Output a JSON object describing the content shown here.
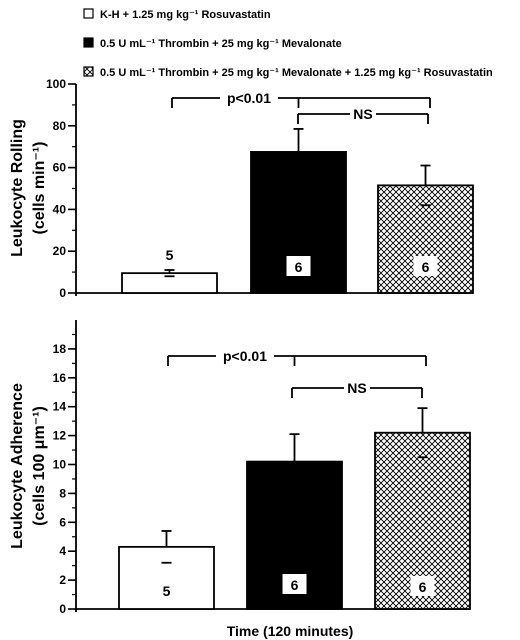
{
  "legend": [
    {
      "swatch": "white",
      "text": "K-H + 1.25 mg kg⁻¹ Rosuvastatin"
    },
    {
      "swatch": "black",
      "text": "0.5 U mL⁻¹ Thrombin + 25 mg kg⁻¹ Mevalonate"
    },
    {
      "swatch": "hatch",
      "text": "0.5 U mL⁻¹ Thrombin + 25 mg kg⁻¹ Mevalonate + 1.25 mg kg⁻¹ Rosuvastatin"
    }
  ],
  "x_axis_title": "Time (120 minutes)",
  "chart_data": [
    {
      "type": "bar",
      "ylabel_line1": "Leukocyte Rolling",
      "ylabel_line2": "(cells  min⁻¹)",
      "ylim": [
        0,
        100
      ],
      "yticks": [
        0,
        20,
        40,
        60,
        80,
        100
      ],
      "bars": [
        {
          "group": "K-H + 1.25 mg kg⁻¹ Rosuvastatin",
          "value": 9.5,
          "error": 1.5,
          "n": "5",
          "fill": "white"
        },
        {
          "group": "0.5 U mL⁻¹ Thrombin + 25 mg kg⁻¹ Mevalonate",
          "value": 67.5,
          "error": 11,
          "n": "6",
          "fill": "black"
        },
        {
          "group": "0.5 U mL⁻¹ Thrombin + 25 mg kg⁻¹ Mevalonate + 1.25 mg kg⁻¹ Rosuvastatin",
          "value": 51.5,
          "error": 9.5,
          "n": "6",
          "fill": "hatch"
        }
      ],
      "annotations": [
        {
          "text": "p<0.01",
          "from": 0,
          "to": 2
        },
        {
          "text": "NS",
          "from": 1,
          "to": 2
        }
      ]
    },
    {
      "type": "bar",
      "ylabel_line1": "Leukocyte Adherence",
      "ylabel_line2": "(cells 100 μm⁻¹)",
      "ylim": [
        0,
        20
      ],
      "yticks": [
        0,
        2,
        4,
        6,
        8,
        10,
        12,
        14,
        16,
        18
      ],
      "bars": [
        {
          "group": "K-H + 1.25 mg kg⁻¹ Rosuvastatin",
          "value": 4.3,
          "error": 1.1,
          "n": "5",
          "fill": "white"
        },
        {
          "group": "0.5 U mL⁻¹ Thrombin + 25 mg kg⁻¹ Mevalonate",
          "value": 10.2,
          "error": 1.9,
          "n": "6",
          "fill": "black"
        },
        {
          "group": "0.5 U mL⁻¹ Thrombin + 25 mg kg⁻¹ Mevalonate + 1.25 mg kg⁻¹ Rosuvastatin",
          "value": 12.2,
          "error": 1.7,
          "n": "6",
          "fill": "hatch"
        }
      ],
      "annotations": [
        {
          "text": "p<0.01",
          "from": 0,
          "to": 2
        },
        {
          "text": "NS",
          "from": 1,
          "to": 2
        }
      ]
    }
  ]
}
